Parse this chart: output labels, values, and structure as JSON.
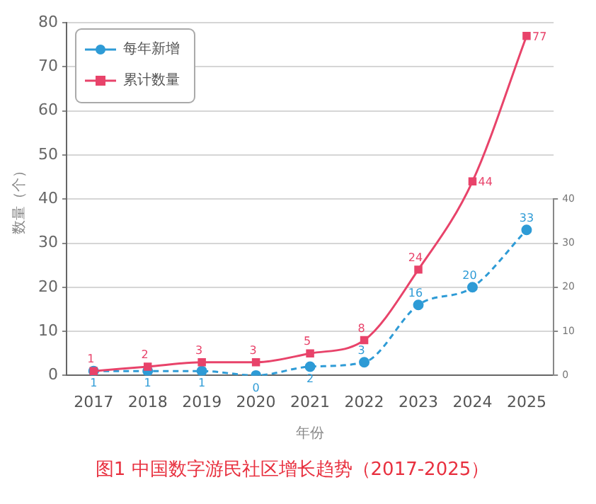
{
  "chart_data": {
    "type": "line",
    "title": "图1 中国数字游民社区增长趋势（2017-2025）",
    "xlabel": "年份",
    "ylabel": "数量（个）",
    "categories": [
      "2017",
      "2018",
      "2019",
      "2020",
      "2021",
      "2022",
      "2023",
      "2024",
      "2025"
    ],
    "series": [
      {
        "name": "每年新增",
        "color": "#2e9bd6",
        "values": [
          1,
          1,
          1,
          0,
          2,
          3,
          16,
          20,
          33
        ],
        "axis": "y2",
        "marker": "circle",
        "line_style": "dashed"
      },
      {
        "name": "累计数量",
        "color": "#e8436a",
        "values": [
          1,
          2,
          3,
          3,
          5,
          8,
          24,
          44,
          77
        ],
        "marker": "square",
        "line_style": "solid"
      }
    ],
    "ylim": [
      0,
      80
    ],
    "yticks": [
      0,
      10,
      20,
      30,
      40,
      50,
      60,
      70,
      80
    ],
    "y2lim": [
      0,
      40
    ],
    "y2ticks": [
      0,
      10,
      20,
      30,
      40
    ],
    "grid": "y",
    "legend": "top left",
    "data_labels": true
  }
}
